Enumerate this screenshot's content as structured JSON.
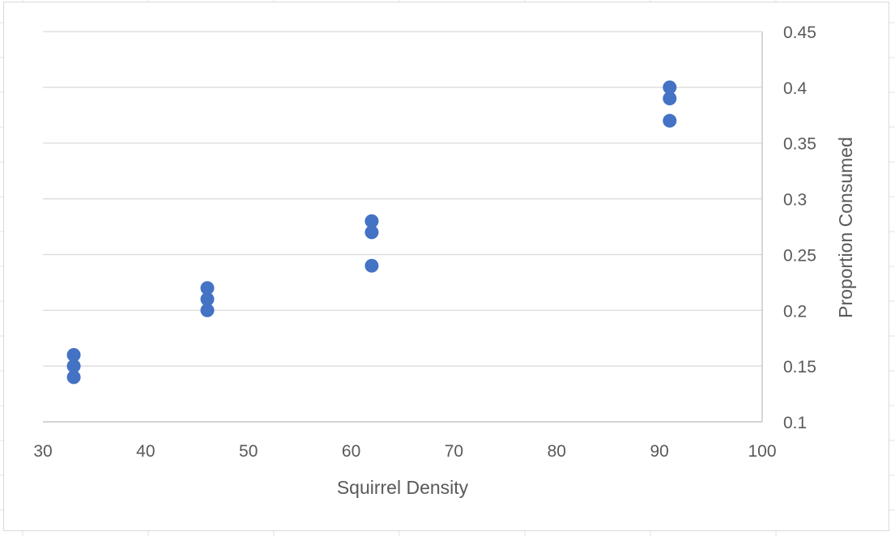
{
  "chart_data": {
    "type": "scatter",
    "title": "",
    "xlabel": "Squirrel Density",
    "ylabel": "Proportion Consumed",
    "xlim": [
      30,
      100
    ],
    "ylim": [
      0.1,
      0.45
    ],
    "xticks": [
      30,
      40,
      50,
      60,
      70,
      80,
      90,
      100
    ],
    "yticks": [
      0.1,
      0.15,
      0.2,
      0.25,
      0.3,
      0.35,
      0.4,
      0.45
    ],
    "ytick_labels": [
      "0.1",
      "0.15",
      "0.2",
      "0.25",
      "0.3",
      "0.35",
      "0.4",
      "0.45"
    ],
    "y_axis_side": "right",
    "grid": "horizontal",
    "legend": "none",
    "series": [
      {
        "color": "#4472C4",
        "points": [
          {
            "x": 33,
            "y": 0.14
          },
          {
            "x": 33,
            "y": 0.15
          },
          {
            "x": 33,
            "y": 0.16
          },
          {
            "x": 46,
            "y": 0.2
          },
          {
            "x": 46,
            "y": 0.21
          },
          {
            "x": 46,
            "y": 0.22
          },
          {
            "x": 62,
            "y": 0.24
          },
          {
            "x": 62,
            "y": 0.27
          },
          {
            "x": 62,
            "y": 0.28
          },
          {
            "x": 91,
            "y": 0.37
          },
          {
            "x": 91,
            "y": 0.39
          },
          {
            "x": 91,
            "y": 0.4
          }
        ]
      }
    ]
  }
}
